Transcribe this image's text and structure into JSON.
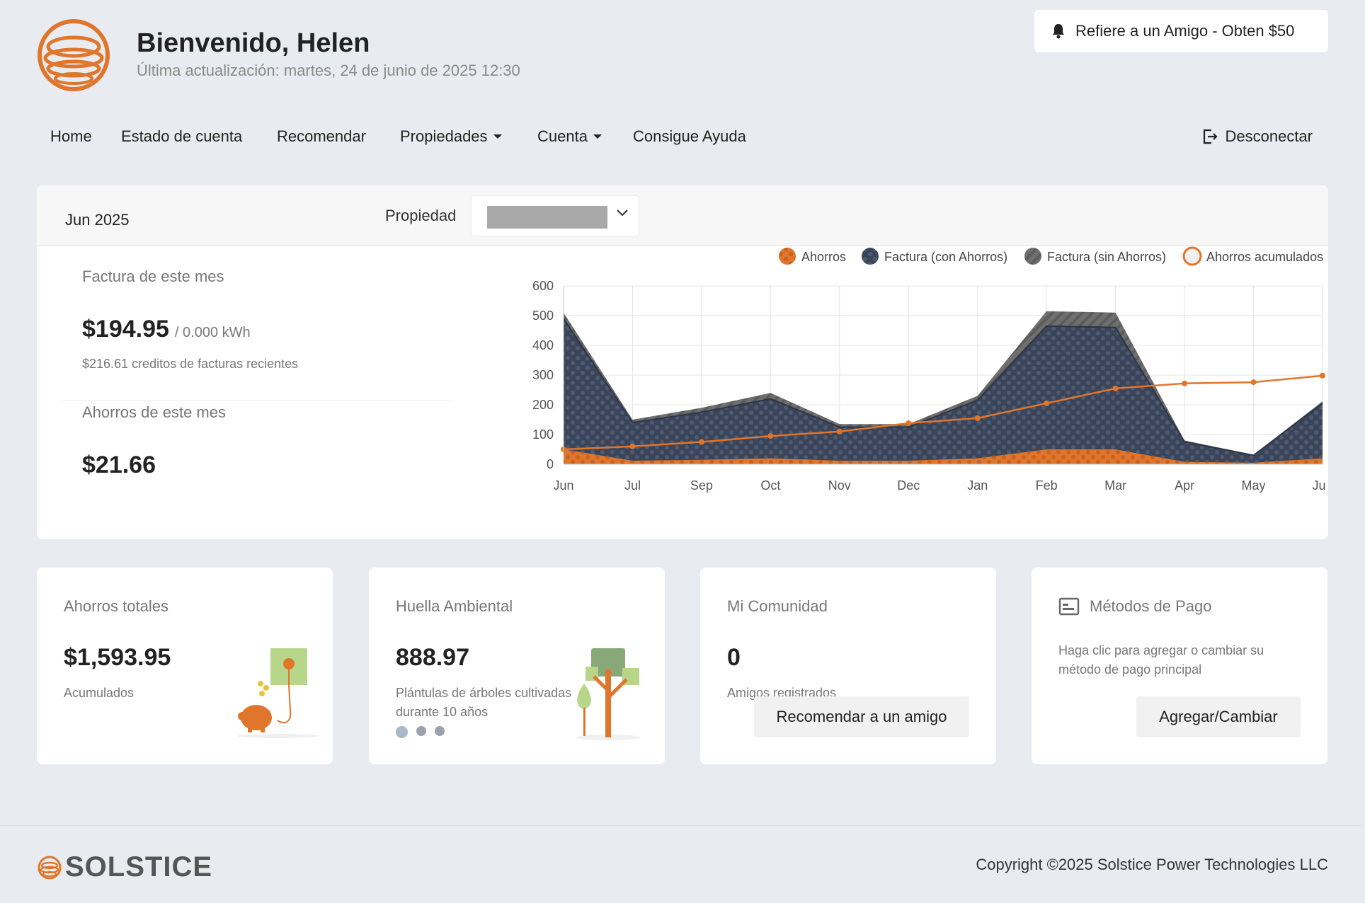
{
  "header": {
    "welcome": "Bienvenido, Helen",
    "last_updated": "Última actualización: martes, 24 de junio de 2025 12:30",
    "refer_button": "Refiere a un Amigo - Obten $50"
  },
  "nav": {
    "items": [
      "Home",
      "Estado de cuenta",
      "Recomendar",
      "Propiedades",
      "Cuenta",
      "Consigue Ayuda"
    ],
    "logout": "Desconectar"
  },
  "summary": {
    "period": "Jun 2025",
    "property_label": "Propiedad",
    "bill_label": "Factura de este mes",
    "bill_amount": "$194.95",
    "bill_kwh": "/ 0.000 kWh",
    "credits": "$216.61 creditos de facturas recientes",
    "savings_label": "Ahorros de este mes",
    "savings_amount": "$21.66"
  },
  "chart_data": {
    "type": "area",
    "categories": [
      "Jun",
      "Jul",
      "Sep",
      "Oct",
      "Nov",
      "Dec",
      "Jan",
      "Feb",
      "Mar",
      "Apr",
      "May",
      "Jun"
    ],
    "series": [
      {
        "name": "Ahorros",
        "values": [
          50,
          12,
          15,
          20,
          12,
          12,
          20,
          50,
          50,
          8,
          5,
          20
        ]
      },
      {
        "name": "Factura (con Ahorros)",
        "values": [
          490,
          140,
          175,
          220,
          125,
          125,
          215,
          465,
          460,
          75,
          30,
          205
        ]
      },
      {
        "name": "Factura (sin Ahorros)",
        "values": [
          510,
          150,
          190,
          240,
          135,
          135,
          230,
          515,
          510,
          80,
          32,
          212
        ]
      },
      {
        "name": "Ahorros acumulados",
        "values": [
          50,
          60,
          75,
          95,
          110,
          138,
          155,
          205,
          255,
          272,
          276,
          298
        ]
      }
    ],
    "y_ticks": [
      "600",
      "500",
      "400",
      "300",
      "200",
      "100",
      "0"
    ],
    "ylim": [
      0,
      600
    ],
    "grid": true,
    "legend": "top-right",
    "colors": {
      "ahorros": "#e0762c",
      "con": "#3a4559",
      "sin": "#6f6f6f",
      "acum": "#e0762c"
    }
  },
  "cards": {
    "total": {
      "title": "Ahorros totales",
      "value": "$1,593.95",
      "sub": "Acumulados"
    },
    "env": {
      "title": "Huella Ambiental",
      "value": "888.97",
      "sub": "Plántulas de árboles cultivadas durante 10 años"
    },
    "community": {
      "title": "Mi Comunidad",
      "value": "0",
      "sub": "Amigos registrados",
      "button": "Recomendar a un amigo"
    },
    "payment": {
      "title": "Métodos de Pago",
      "sub": "Haga clic para agregar o cambiar su método de pago principal",
      "button": "Agregar/Cambiar"
    }
  },
  "footer": {
    "brand": "SOLSTICE",
    "copyright": "Copyright ©2025 Solstice Power Technologies LLC"
  }
}
